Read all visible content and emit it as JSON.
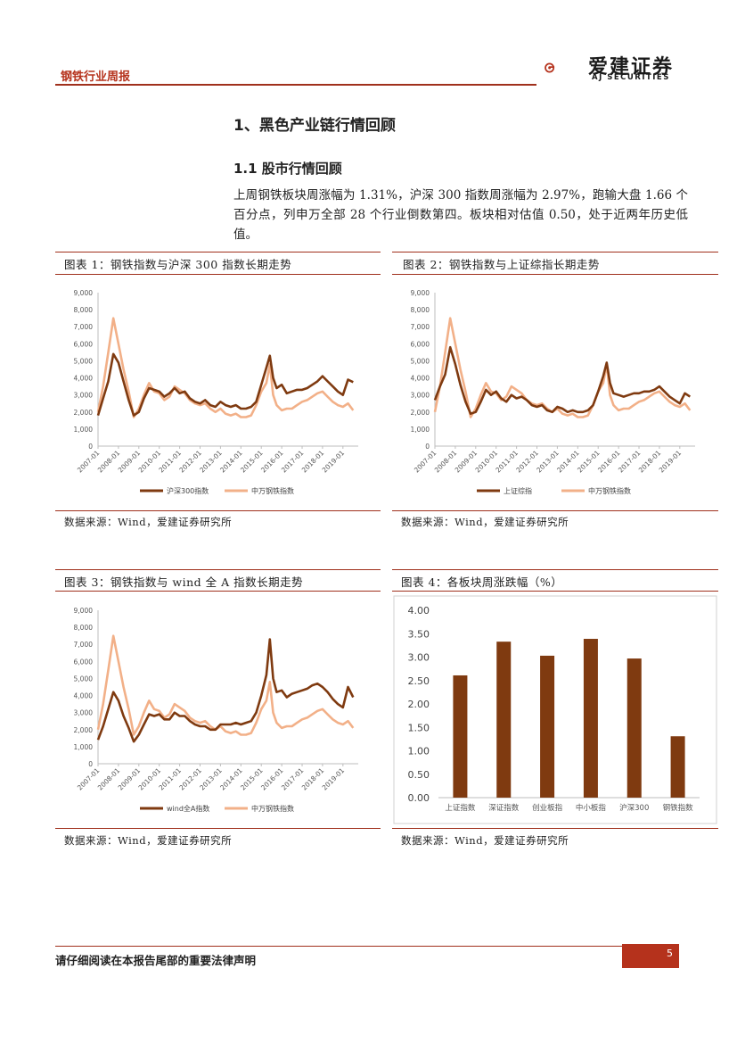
{
  "header": {
    "title": "钢铁行业周报",
    "logo_cn": "爱建证券",
    "logo_en": "AJ SECURITIES"
  },
  "section": {
    "h1": "1、黑色产业链行情回顾",
    "h2": "1.1 股市行情回顾",
    "paragraph": "上周钢铁板块周涨幅为 1.31%，沪深 300 指数周涨幅为 2.97%，跑输大盘 1.66 个百分点，列申万全部 28 个行业倒数第四。板块相对估值 0.50，处于近两年历史低值。"
  },
  "figures": [
    {
      "title": "图表 1：钢铁指数与沪深 300 指数长期走势",
      "source": "数据来源：Wind，爱建证券研究所"
    },
    {
      "title": "图表 2：钢铁指数与上证综指长期走势",
      "source": "数据来源：Wind，爱建证券研究所"
    },
    {
      "title": "图表 3：钢铁指数与 wind 全 A 指数长期走势",
      "source": "数据来源：Wind，爱建证券研究所"
    },
    {
      "title": "图表 4：各板块周涨跌幅（%）",
      "source": "数据来源：Wind，爱建证券研究所"
    }
  ],
  "colors": {
    "dark_series": "#7f3a10",
    "light_series": "#f2b088",
    "accent": "#b5321c"
  },
  "chart_data": [
    {
      "type": "line",
      "ylim": [
        0,
        9000
      ],
      "yticks": [
        "0",
        "1,000",
        "2,000",
        "3,000",
        "4,000",
        "5,000",
        "6,000",
        "7,000",
        "8,000",
        "9,000"
      ],
      "xticks": [
        "2007-01",
        "2008-01",
        "2009-01",
        "2010-01",
        "2011-01",
        "2012-01",
        "2013-01",
        "2014-01",
        "2015-01",
        "2016-01",
        "2017-01",
        "2018-01",
        "2019-01"
      ],
      "x": [
        2007.0,
        2007.25,
        2007.5,
        2007.75,
        2008.0,
        2008.25,
        2008.5,
        2008.75,
        2009.0,
        2009.25,
        2009.5,
        2009.75,
        2010.0,
        2010.25,
        2010.5,
        2010.75,
        2011.0,
        2011.25,
        2011.5,
        2011.75,
        2012.0,
        2012.25,
        2012.5,
        2012.75,
        2013.0,
        2013.25,
        2013.5,
        2013.75,
        2014.0,
        2014.25,
        2014.5,
        2014.75,
        2015.0,
        2015.25,
        2015.42,
        2015.58,
        2015.75,
        2016.0,
        2016.25,
        2016.5,
        2016.75,
        2017.0,
        2017.25,
        2017.5,
        2017.75,
        2018.0,
        2018.25,
        2018.5,
        2018.75,
        2019.0,
        2019.25,
        2019.5
      ],
      "series": [
        {
          "name": "沪深300指数",
          "values": [
            1800,
            2800,
            3800,
            5400,
            4900,
            3800,
            2700,
            1800,
            2000,
            2800,
            3400,
            3300,
            3200,
            2900,
            3100,
            3400,
            3100,
            3200,
            2800,
            2600,
            2500,
            2700,
            2400,
            2300,
            2600,
            2400,
            2300,
            2400,
            2200,
            2200,
            2300,
            2600,
            3600,
            4600,
            5300,
            4000,
            3400,
            3600,
            3100,
            3200,
            3300,
            3300,
            3400,
            3600,
            3800,
            4100,
            3800,
            3500,
            3200,
            3000,
            3900,
            3750
          ]
        },
        {
          "name": "中万钢铁指数",
          "values": [
            2000,
            3500,
            5500,
            7500,
            6000,
            4500,
            3200,
            1700,
            2200,
            3000,
            3700,
            3200,
            3100,
            2700,
            2900,
            3500,
            3300,
            3100,
            2700,
            2500,
            2400,
            2500,
            2200,
            2000,
            2200,
            1900,
            1800,
            1900,
            1700,
            1700,
            1800,
            2400,
            3200,
            3700,
            4800,
            3000,
            2400,
            2100,
            2200,
            2200,
            2400,
            2600,
            2700,
            2900,
            3100,
            3200,
            2900,
            2600,
            2400,
            2300,
            2500,
            2100
          ]
        }
      ]
    },
    {
      "type": "line",
      "ylim": [
        0,
        9000
      ],
      "yticks": [
        "0",
        "1,000",
        "2,000",
        "3,000",
        "4,000",
        "5,000",
        "6,000",
        "7,000",
        "8,000",
        "9,000"
      ],
      "xticks": [
        "2007-01",
        "2008-01",
        "2009-01",
        "2010-01",
        "2011-01",
        "2012-01",
        "2013-01",
        "2014-01",
        "2015-01",
        "2016-01",
        "2017-01",
        "2018-01",
        "2019-01"
      ],
      "x": [
        2007.0,
        2007.25,
        2007.5,
        2007.75,
        2008.0,
        2008.25,
        2008.5,
        2008.75,
        2009.0,
        2009.25,
        2009.5,
        2009.75,
        2010.0,
        2010.25,
        2010.5,
        2010.75,
        2011.0,
        2011.25,
        2011.5,
        2011.75,
        2012.0,
        2012.25,
        2012.5,
        2012.75,
        2013.0,
        2013.25,
        2013.5,
        2013.75,
        2014.0,
        2014.25,
        2014.5,
        2014.75,
        2015.0,
        2015.25,
        2015.42,
        2015.58,
        2015.75,
        2016.0,
        2016.25,
        2016.5,
        2016.75,
        2017.0,
        2017.25,
        2017.5,
        2017.75,
        2018.0,
        2018.25,
        2018.5,
        2018.75,
        2019.0,
        2019.25,
        2019.5
      ],
      "series": [
        {
          "name": "上证综指",
          "values": [
            2700,
            3500,
            4200,
            5800,
            4800,
            3600,
            2600,
            1900,
            2000,
            2600,
            3300,
            3000,
            3200,
            2800,
            2600,
            3000,
            2800,
            2900,
            2700,
            2400,
            2300,
            2400,
            2100,
            2000,
            2300,
            2200,
            2000,
            2100,
            2000,
            2000,
            2100,
            2400,
            3200,
            4100,
            4900,
            3700,
            3100,
            3000,
            2900,
            3000,
            3100,
            3100,
            3200,
            3200,
            3300,
            3500,
            3200,
            2900,
            2700,
            2500,
            3100,
            2900
          ]
        },
        {
          "name": "中万钢铁指数",
          "values": [
            2000,
            3500,
            5500,
            7500,
            6000,
            4500,
            3200,
            1700,
            2200,
            3000,
            3700,
            3200,
            3100,
            2700,
            2900,
            3500,
            3300,
            3100,
            2700,
            2500,
            2400,
            2500,
            2200,
            2000,
            2200,
            1900,
            1800,
            1900,
            1700,
            1700,
            1800,
            2400,
            3200,
            3700,
            4800,
            3000,
            2400,
            2100,
            2200,
            2200,
            2400,
            2600,
            2700,
            2900,
            3100,
            3200,
            2900,
            2600,
            2400,
            2300,
            2500,
            2100
          ]
        }
      ]
    },
    {
      "type": "line",
      "ylim": [
        0,
        9000
      ],
      "yticks": [
        "0",
        "1,000",
        "2,000",
        "3,000",
        "4,000",
        "5,000",
        "6,000",
        "7,000",
        "8,000",
        "9,000"
      ],
      "xticks": [
        "2007-01",
        "2008-01",
        "2009-01",
        "2010-01",
        "2011-01",
        "2012-01",
        "2013-01",
        "2014-01",
        "2015-01",
        "2016-01",
        "2017-01",
        "2018-01",
        "2019-01"
      ],
      "x": [
        2007.0,
        2007.25,
        2007.5,
        2007.75,
        2008.0,
        2008.25,
        2008.5,
        2008.75,
        2009.0,
        2009.25,
        2009.5,
        2009.75,
        2010.0,
        2010.25,
        2010.5,
        2010.75,
        2011.0,
        2011.25,
        2011.5,
        2011.75,
        2012.0,
        2012.25,
        2012.5,
        2012.75,
        2013.0,
        2013.25,
        2013.5,
        2013.75,
        2014.0,
        2014.25,
        2014.5,
        2014.75,
        2015.0,
        2015.25,
        2015.42,
        2015.58,
        2015.75,
        2016.0,
        2016.25,
        2016.5,
        2016.75,
        2017.0,
        2017.25,
        2017.5,
        2017.75,
        2018.0,
        2018.25,
        2018.5,
        2018.75,
        2019.0,
        2019.25,
        2019.5
      ],
      "series": [
        {
          "name": "wind全A指数",
          "values": [
            1400,
            2200,
            3200,
            4200,
            3700,
            2800,
            2100,
            1300,
            1700,
            2300,
            2900,
            2800,
            2900,
            2600,
            2600,
            3000,
            2800,
            2800,
            2500,
            2300,
            2200,
            2200,
            2000,
            2000,
            2300,
            2300,
            2300,
            2400,
            2300,
            2400,
            2500,
            3000,
            4000,
            5200,
            7300,
            5000,
            4200,
            4300,
            3900,
            4100,
            4200,
            4300,
            4400,
            4600,
            4700,
            4500,
            4200,
            3800,
            3500,
            3300,
            4500,
            3900
          ]
        },
        {
          "name": "中万钢铁指数",
          "values": [
            2000,
            3500,
            5500,
            7500,
            6000,
            4500,
            3200,
            1700,
            2200,
            3000,
            3700,
            3200,
            3100,
            2700,
            2900,
            3500,
            3300,
            3100,
            2700,
            2500,
            2400,
            2500,
            2200,
            2000,
            2200,
            1900,
            1800,
            1900,
            1700,
            1700,
            1800,
            2400,
            3200,
            3700,
            4800,
            3000,
            2400,
            2100,
            2200,
            2200,
            2400,
            2600,
            2700,
            2900,
            3100,
            3200,
            2900,
            2600,
            2400,
            2300,
            2500,
            2100
          ]
        }
      ]
    },
    {
      "type": "bar",
      "ylim": [
        0,
        4
      ],
      "yticks": [
        "0.00",
        "0.50",
        "1.00",
        "1.50",
        "2.00",
        "2.50",
        "3.00",
        "3.50",
        "4.00"
      ],
      "categories": [
        "上证指数",
        "深证指数",
        "创业板指",
        "中小板指",
        "沪深300",
        "钢铁指数"
      ],
      "values": [
        2.61,
        3.33,
        3.03,
        3.39,
        2.97,
        1.31
      ]
    }
  ],
  "footer": {
    "disclaimer": "请仔细阅读在本报告尾部的重要法律声明",
    "page": "5"
  }
}
